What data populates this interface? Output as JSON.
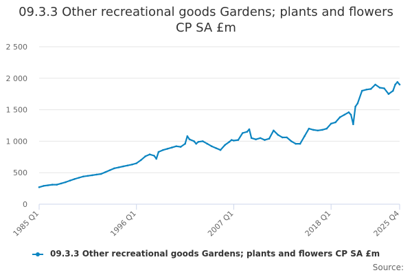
{
  "title": "09.3.3 Other recreational goods Gardens; plants and flowers CP SA £m",
  "legend": {
    "label": "09.3.3 Other recreational goods Gardens; plants and flowers CP SA £m"
  },
  "source": "Source:",
  "colors": {
    "series": "#0c85c1",
    "grid": "#e6e6e6",
    "axis": "#ccd6eb"
  },
  "chart_data": {
    "type": "line",
    "title": "09.3.3 Other recreational goods Gardens; plants and flowers CP SA £m",
    "xlabel": "",
    "ylabel": "",
    "ylim": [
      0,
      2500
    ],
    "y_ticks": [
      "0",
      "500",
      "1 000",
      "1 500",
      "2 000",
      "2 500"
    ],
    "y_tick_values": [
      0,
      500,
      1000,
      1500,
      2000,
      2500
    ],
    "x_tick_labels": [
      "1985 Q1",
      "1996 Q1",
      "2007 Q1",
      "2018 Q1",
      "2025 Q4"
    ],
    "x_tick_values": [
      1985.0,
      1996.0,
      2007.0,
      2018.0,
      2025.75
    ],
    "grid": true,
    "legend_position": "bottom",
    "series": [
      {
        "name": "09.3.3 Other recreational goods Gardens; plants and flowers CP SA £m",
        "x": [
          1985.0,
          1985.5,
          1986.0,
          1986.5,
          1987.0,
          1987.5,
          1988.0,
          1988.5,
          1989.0,
          1989.5,
          1990.0,
          1990.5,
          1991.0,
          1991.5,
          1992.0,
          1992.5,
          1993.0,
          1993.5,
          1994.0,
          1994.5,
          1995.0,
          1995.5,
          1996.0,
          1996.5,
          1997.0,
          1997.5,
          1998.0,
          1998.25,
          1998.5,
          1999.0,
          1999.5,
          2000.0,
          2000.5,
          2001.0,
          2001.5,
          2001.75,
          2002.0,
          2002.5,
          2002.75,
          2003.0,
          2003.5,
          2004.0,
          2004.5,
          2005.0,
          2005.5,
          2006.0,
          2006.5,
          2006.75,
          2007.0,
          2007.5,
          2008.0,
          2008.5,
          2008.75,
          2009.0,
          2009.5,
          2010.0,
          2010.5,
          2011.0,
          2011.5,
          2012.0,
          2012.5,
          2013.0,
          2013.5,
          2014.0,
          2014.5,
          2015.0,
          2015.5,
          2016.0,
          2016.5,
          2017.0,
          2017.5,
          2018.0,
          2018.5,
          2019.0,
          2019.5,
          2020.0,
          2020.25,
          2020.5,
          2020.75,
          2021.0,
          2021.5,
          2022.0,
          2022.5,
          2023.0,
          2023.5,
          2024.0,
          2024.5,
          2025.0,
          2025.25,
          2025.5,
          2025.75
        ],
        "values": [
          270,
          290,
          300,
          310,
          310,
          330,
          350,
          375,
          400,
          420,
          440,
          450,
          460,
          470,
          480,
          510,
          540,
          570,
          585,
          600,
          615,
          630,
          650,
          700,
          760,
          790,
          770,
          720,
          830,
          860,
          880,
          900,
          920,
          910,
          960,
          1080,
          1030,
          1000,
          960,
          990,
          1000,
          960,
          920,
          890,
          860,
          940,
          990,
          1020,
          1010,
          1020,
          1130,
          1150,
          1190,
          1050,
          1030,
          1050,
          1020,
          1040,
          1170,
          1100,
          1060,
          1060,
          1000,
          960,
          960,
          1080,
          1200,
          1180,
          1170,
          1180,
          1200,
          1280,
          1300,
          1380,
          1420,
          1460,
          1420,
          1270,
          1550,
          1600,
          1800,
          1820,
          1830,
          1900,
          1850,
          1840,
          1750,
          1800,
          1900,
          1940,
          1900
        ]
      }
    ]
  }
}
